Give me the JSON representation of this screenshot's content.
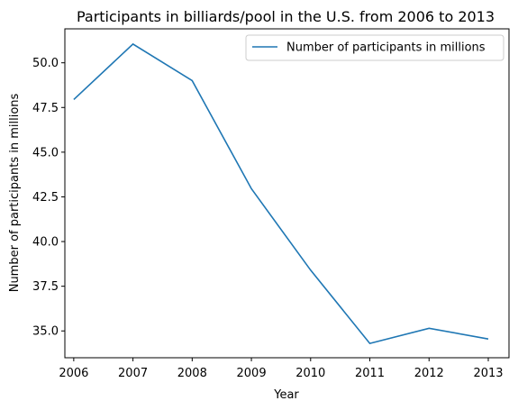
{
  "chart_data": {
    "type": "line",
    "title": "Participants in billiards/pool in the U.S. from 2006 to 2013",
    "xlabel": "Year",
    "ylabel": "Number of participants in millions",
    "x": [
      2006,
      2007,
      2008,
      2009,
      2010,
      2011,
      2012,
      2013
    ],
    "series": [
      {
        "name": "Number of participants in millions",
        "values": [
          47.95,
          51.05,
          49.0,
          42.95,
          38.4,
          34.3,
          35.15,
          34.55
        ],
        "color": "#1f77b4"
      }
    ],
    "xticks": [
      "2006",
      "2007",
      "2008",
      "2009",
      "2010",
      "2011",
      "2012",
      "2013"
    ],
    "yticks": [
      "35.0",
      "37.5",
      "40.0",
      "42.5",
      "45.0",
      "47.5",
      "50.0"
    ],
    "ylim": [
      33.5,
      51.9
    ],
    "xlim": [
      2005.85,
      2013.35
    ],
    "grid": false,
    "legend_position": "top-right"
  }
}
